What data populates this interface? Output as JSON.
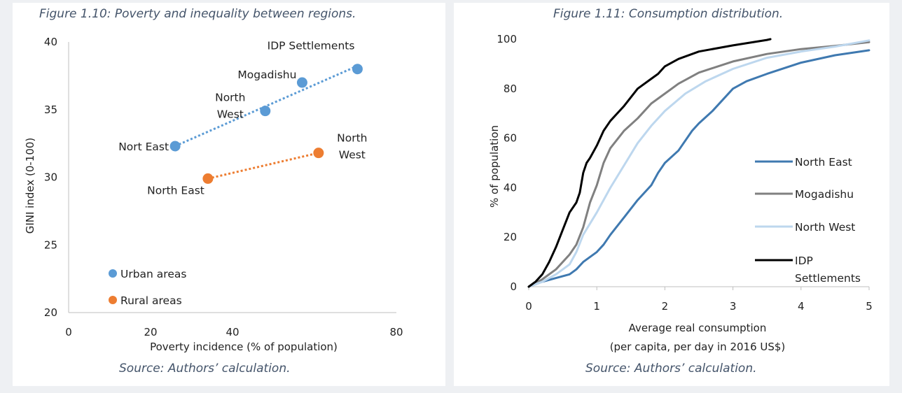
{
  "charts": [
    {
      "figure_title": "Figure 1.10: Poverty and inequality between regions.",
      "source": "Source: Authors’ calculation."
    },
    {
      "figure_title": "Figure 1.11: Consumption distribution.",
      "source": "Source: Authors’ calculation."
    }
  ],
  "chart_data": [
    {
      "type": "scatter",
      "title": "Figure 1.10: Poverty and inequality between regions.",
      "xlabel": "Poverty incidence  (% of population)",
      "ylabel": "GINI index (0-100)",
      "xlim": [
        0,
        80
      ],
      "ylim": [
        20,
        40
      ],
      "xticks": [
        0,
        20,
        40,
        80
      ],
      "yticks": [
        20,
        25,
        30,
        35,
        40
      ],
      "legend_position": "bottom-left",
      "series": [
        {
          "name": "Urban areas",
          "color": "#5b9bd5",
          "trendline": "dotted-linear",
          "points": [
            {
              "label": "Nort East",
              "x": 26,
              "y": 32.3
            },
            {
              "label": "North West",
              "x": 48,
              "y": 34.9
            },
            {
              "label": "Mogadishu",
              "x": 57,
              "y": 37.0
            },
            {
              "label": "IDP Settlements",
              "x": 70.5,
              "y": 38.0
            }
          ]
        },
        {
          "name": "Rural areas",
          "color": "#ed7d31",
          "trendline": "dotted-linear",
          "points": [
            {
              "label": "North East",
              "x": 34,
              "y": 29.9
            },
            {
              "label": "North West",
              "x": 61,
              "y": 31.8
            }
          ]
        }
      ]
    },
    {
      "type": "line",
      "title": "Figure 1.11: Consumption distribution.",
      "xlabel": "Average real consumption",
      "xlabel_line2": "(per capita, per day in 2016 US$)",
      "ylabel": "% of population",
      "xlim": [
        0,
        5
      ],
      "ylim": [
        0,
        100
      ],
      "xticks": [
        0,
        1,
        2,
        3,
        4,
        5
      ],
      "yticks": [
        0,
        20,
        40,
        60,
        80,
        100
      ],
      "legend_position": "right",
      "series": [
        {
          "name": "North East",
          "color": "#3f79b0",
          "width": 3,
          "points": [
            [
              0,
              0
            ],
            [
              0.2,
              2
            ],
            [
              0.4,
              3.5
            ],
            [
              0.6,
              5
            ],
            [
              0.7,
              7
            ],
            [
              0.8,
              10
            ],
            [
              1.0,
              14
            ],
            [
              1.1,
              17
            ],
            [
              1.2,
              21
            ],
            [
              1.4,
              28
            ],
            [
              1.6,
              35
            ],
            [
              1.8,
              41
            ],
            [
              1.9,
              46
            ],
            [
              2.0,
              50
            ],
            [
              2.2,
              55
            ],
            [
              2.4,
              63
            ],
            [
              2.5,
              66
            ],
            [
              2.7,
              71
            ],
            [
              3.0,
              80
            ],
            [
              3.2,
              83
            ],
            [
              3.5,
              86
            ],
            [
              4.0,
              90.5
            ],
            [
              4.5,
              93.5
            ],
            [
              5.0,
              95.5
            ]
          ]
        },
        {
          "name": "Mogadishu",
          "color": "#808080",
          "width": 3,
          "points": [
            [
              0,
              0
            ],
            [
              0.2,
              3
            ],
            [
              0.4,
              7
            ],
            [
              0.6,
              13
            ],
            [
              0.7,
              17
            ],
            [
              0.8,
              24
            ],
            [
              0.9,
              34
            ],
            [
              1.0,
              41
            ],
            [
              1.1,
              50
            ],
            [
              1.2,
              56
            ],
            [
              1.4,
              63
            ],
            [
              1.6,
              68
            ],
            [
              1.8,
              74
            ],
            [
              2.0,
              78
            ],
            [
              2.2,
              82
            ],
            [
              2.5,
              86.5
            ],
            [
              3.0,
              91
            ],
            [
              3.5,
              94
            ],
            [
              4.0,
              96
            ],
            [
              4.5,
              97.3
            ],
            [
              5.0,
              98.8
            ]
          ]
        },
        {
          "name": "North West",
          "color": "#bdd7ee",
          "width": 3,
          "points": [
            [
              0,
              0
            ],
            [
              0.2,
              2
            ],
            [
              0.4,
              5
            ],
            [
              0.6,
              9
            ],
            [
              0.7,
              14
            ],
            [
              0.8,
              21
            ],
            [
              1.0,
              30
            ],
            [
              1.2,
              40
            ],
            [
              1.4,
              49
            ],
            [
              1.6,
              58
            ],
            [
              1.8,
              65
            ],
            [
              2.0,
              71
            ],
            [
              2.3,
              78
            ],
            [
              2.6,
              83
            ],
            [
              3.0,
              88
            ],
            [
              3.5,
              92.5
            ],
            [
              4.0,
              95
            ],
            [
              4.5,
              97
            ],
            [
              5.0,
              99.5
            ]
          ]
        },
        {
          "name": "IDP Settlements",
          "color": "#000000",
          "width": 3,
          "points": [
            [
              0,
              0
            ],
            [
              0.1,
              2
            ],
            [
              0.2,
              5
            ],
            [
              0.3,
              10
            ],
            [
              0.4,
              16
            ],
            [
              0.5,
              23
            ],
            [
              0.6,
              30
            ],
            [
              0.7,
              34
            ],
            [
              0.75,
              38
            ],
            [
              0.8,
              46
            ],
            [
              0.85,
              50
            ],
            [
              0.9,
              52
            ],
            [
              1.0,
              57
            ],
            [
              1.1,
              63
            ],
            [
              1.2,
              67
            ],
            [
              1.4,
              73
            ],
            [
              1.6,
              80
            ],
            [
              1.8,
              84
            ],
            [
              1.9,
              86
            ],
            [
              2.0,
              89
            ],
            [
              2.2,
              92
            ],
            [
              2.5,
              95
            ],
            [
              3.0,
              97.5
            ],
            [
              3.5,
              99.7
            ],
            [
              3.55,
              100
            ]
          ]
        }
      ]
    }
  ]
}
